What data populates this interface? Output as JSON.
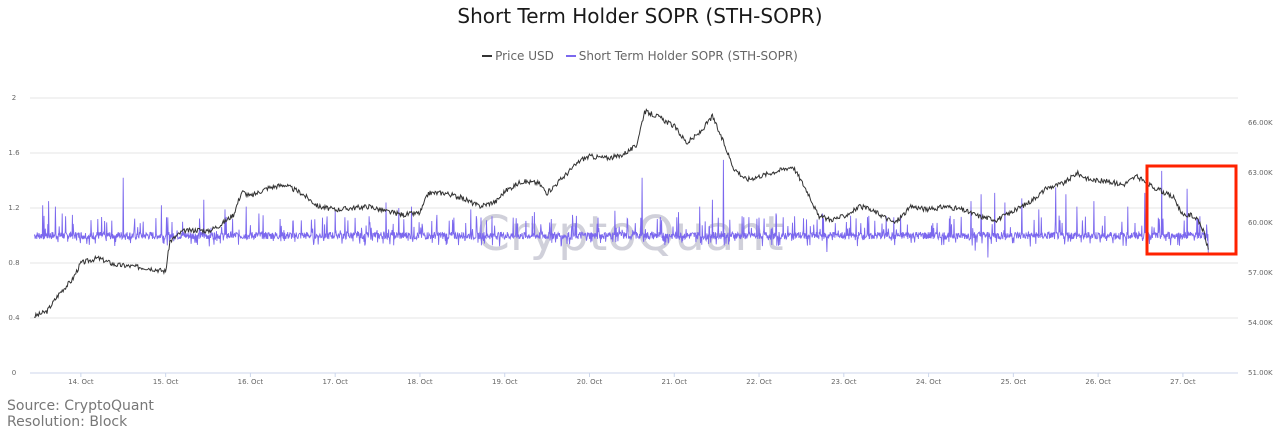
{
  "chart_data": {
    "type": "line",
    "title": "Short Term Holder SOPR (STH-SOPR)",
    "legend_position": "top-center",
    "grid": true,
    "x": {
      "range_days": [
        13.4,
        27.65
      ],
      "ticks": [
        {
          "label": "14. Oct",
          "day": 14
        },
        {
          "label": "15. Oct",
          "day": 15
        },
        {
          "label": "16. Oct",
          "day": 16
        },
        {
          "label": "17. Oct",
          "day": 17
        },
        {
          "label": "18. Oct",
          "day": 18
        },
        {
          "label": "19. Oct",
          "day": 19
        },
        {
          "label": "20. Oct",
          "day": 20
        },
        {
          "label": "21. Oct",
          "day": 21
        },
        {
          "label": "22. Oct",
          "day": 22
        },
        {
          "label": "23. Oct",
          "day": 23
        },
        {
          "label": "24. Oct",
          "day": 24
        },
        {
          "label": "25. Oct",
          "day": 25
        },
        {
          "label": "26. Oct",
          "day": 26
        },
        {
          "label": "27. Oct",
          "day": 27
        }
      ]
    },
    "y_left": {
      "range": [
        0,
        2
      ],
      "ticks": [
        {
          "label": "0",
          "value": 0
        },
        {
          "label": "0.4",
          "value": 0.4
        },
        {
          "label": "0.8",
          "value": 0.8
        },
        {
          "label": "1.2",
          "value": 1.2
        },
        {
          "label": "1.6",
          "value": 1.6
        },
        {
          "label": "2",
          "value": 2
        }
      ]
    },
    "y_right": {
      "range": [
        51000,
        67500
      ],
      "ticks": [
        {
          "label": "51.00K",
          "value": 51000
        },
        {
          "label": "54.00K",
          "value": 54000
        },
        {
          "label": "57.00K",
          "value": 57000
        },
        {
          "label": "60.00K",
          "value": 60000
        },
        {
          "label": "63.00K",
          "value": 63000
        },
        {
          "label": "66.00K",
          "value": 66000
        }
      ]
    },
    "series": [
      {
        "name": "Price USD",
        "axis": "right",
        "color": "#333333",
        "points": [
          [
            13.45,
            54.4
          ],
          [
            13.6,
            54.7
          ],
          [
            13.75,
            55.8
          ],
          [
            13.9,
            56.6
          ],
          [
            14.0,
            57.6
          ],
          [
            14.2,
            57.9
          ],
          [
            14.4,
            57.5
          ],
          [
            14.6,
            57.4
          ],
          [
            14.8,
            57.3
          ],
          [
            15.0,
            57.1
          ],
          [
            15.05,
            58.9
          ],
          [
            15.2,
            59.5
          ],
          [
            15.4,
            59.6
          ],
          [
            15.5,
            59.5
          ],
          [
            15.65,
            59.9
          ],
          [
            15.8,
            60.5
          ],
          [
            15.9,
            61.9
          ],
          [
            16.0,
            61.6
          ],
          [
            16.2,
            62.1
          ],
          [
            16.4,
            62.3
          ],
          [
            16.6,
            61.8
          ],
          [
            16.8,
            61.0
          ],
          [
            17.0,
            60.8
          ],
          [
            17.2,
            60.9
          ],
          [
            17.4,
            61.0
          ],
          [
            17.6,
            60.7
          ],
          [
            17.8,
            60.5
          ],
          [
            18.0,
            60.6
          ],
          [
            18.1,
            61.8
          ],
          [
            18.3,
            61.8
          ],
          [
            18.5,
            61.5
          ],
          [
            18.7,
            61.0
          ],
          [
            18.9,
            61.3
          ],
          [
            19.0,
            61.9
          ],
          [
            19.2,
            62.5
          ],
          [
            19.4,
            62.4
          ],
          [
            19.5,
            61.8
          ],
          [
            19.7,
            62.8
          ],
          [
            19.9,
            63.8
          ],
          [
            20.0,
            64.0
          ],
          [
            20.2,
            63.9
          ],
          [
            20.35,
            64.0
          ],
          [
            20.55,
            64.6
          ],
          [
            20.65,
            66.7
          ],
          [
            20.8,
            66.4
          ],
          [
            21.0,
            65.8
          ],
          [
            21.15,
            64.8
          ],
          [
            21.3,
            65.4
          ],
          [
            21.45,
            66.4
          ],
          [
            21.6,
            64.6
          ],
          [
            21.7,
            63.3
          ],
          [
            21.85,
            62.6
          ],
          [
            22.0,
            62.8
          ],
          [
            22.2,
            63.1
          ],
          [
            22.4,
            63.4
          ],
          [
            22.6,
            61.6
          ],
          [
            22.7,
            60.4
          ],
          [
            22.85,
            60.2
          ],
          [
            23.0,
            60.4
          ],
          [
            23.2,
            61.0
          ],
          [
            23.4,
            60.6
          ],
          [
            23.6,
            60.0
          ],
          [
            23.8,
            61.0
          ],
          [
            24.0,
            60.8
          ],
          [
            24.2,
            61.0
          ],
          [
            24.4,
            60.8
          ],
          [
            24.6,
            60.4
          ],
          [
            24.8,
            60.2
          ],
          [
            25.0,
            60.7
          ],
          [
            25.2,
            61.3
          ],
          [
            25.4,
            62.1
          ],
          [
            25.6,
            62.4
          ],
          [
            25.75,
            63.0
          ],
          [
            25.9,
            62.6
          ],
          [
            26.1,
            62.5
          ],
          [
            26.3,
            62.3
          ],
          [
            26.45,
            62.8
          ],
          [
            26.6,
            62.3
          ],
          [
            26.75,
            61.9
          ],
          [
            26.9,
            61.5
          ],
          [
            27.0,
            60.4
          ],
          [
            27.1,
            60.5
          ],
          [
            27.2,
            60.0
          ],
          [
            27.25,
            59.4
          ],
          [
            27.3,
            58.4
          ]
        ]
      },
      {
        "name": "Short Term Holder SOPR (STH-SOPR)",
        "axis": "left",
        "color": "#7b68ee",
        "baseline": 1.0,
        "spikes": [
          [
            13.55,
            1.22
          ],
          [
            13.62,
            1.25
          ],
          [
            13.7,
            1.21
          ],
          [
            13.78,
            1.16
          ],
          [
            13.9,
            1.15
          ],
          [
            14.2,
            1.12
          ],
          [
            14.5,
            1.42
          ],
          [
            14.7,
            1.09
          ],
          [
            14.95,
            1.22
          ],
          [
            15.2,
            1.1
          ],
          [
            15.45,
            1.26
          ],
          [
            15.7,
            1.19
          ],
          [
            15.95,
            1.21
          ],
          [
            16.1,
            1.16
          ],
          [
            16.35,
            1.12
          ],
          [
            16.6,
            1.11
          ],
          [
            16.85,
            1.13
          ],
          [
            17.0,
            1.18
          ],
          [
            17.15,
            1.11
          ],
          [
            17.4,
            1.14
          ],
          [
            17.6,
            1.24
          ],
          [
            17.75,
            1.2
          ],
          [
            17.9,
            1.21
          ],
          [
            18.2,
            1.15
          ],
          [
            18.4,
            1.13
          ],
          [
            18.6,
            1.19
          ],
          [
            18.85,
            1.14
          ],
          [
            19.1,
            1.13
          ],
          [
            19.35,
            1.17
          ],
          [
            19.55,
            1.12
          ],
          [
            19.8,
            1.15
          ],
          [
            20.1,
            1.13
          ],
          [
            20.3,
            1.18
          ],
          [
            20.45,
            1.12
          ],
          [
            20.62,
            1.42
          ],
          [
            20.8,
            1.12
          ],
          [
            21.05,
            1.17
          ],
          [
            21.3,
            1.21
          ],
          [
            21.45,
            1.26
          ],
          [
            21.58,
            1.55
          ],
          [
            21.8,
            1.14
          ],
          [
            22.0,
            1.13
          ],
          [
            22.2,
            1.16
          ],
          [
            22.42,
            1.14
          ],
          [
            22.6,
            1.27
          ],
          [
            22.75,
            1.16
          ],
          [
            22.9,
            1.09
          ],
          [
            23.2,
            1.09
          ],
          [
            23.5,
            1.14
          ],
          [
            23.75,
            1.08
          ],
          [
            24.05,
            1.09
          ],
          [
            24.3,
            1.12
          ],
          [
            24.5,
            1.25
          ],
          [
            24.62,
            1.3
          ],
          [
            24.7,
            1.4
          ],
          [
            24.78,
            1.31
          ],
          [
            24.9,
            1.24
          ],
          [
            25.1,
            1.27
          ],
          [
            25.3,
            1.19
          ],
          [
            25.5,
            1.35
          ],
          [
            25.62,
            1.3
          ],
          [
            25.75,
            1.21
          ],
          [
            25.95,
            1.25
          ],
          [
            26.1,
            1.22
          ],
          [
            26.35,
            1.21
          ],
          [
            26.55,
            1.31
          ],
          [
            26.75,
            1.47
          ],
          [
            27.05,
            1.34
          ],
          [
            27.2,
            1.14
          ],
          [
            27.28,
            1.08
          ]
        ],
        "dips": [
          [
            14.3,
            0.96
          ],
          [
            15.3,
            0.94
          ],
          [
            16.4,
            0.96
          ],
          [
            17.5,
            0.95
          ],
          [
            18.3,
            0.96
          ],
          [
            19.6,
            0.95
          ],
          [
            20.9,
            0.95
          ],
          [
            22.6,
            0.93
          ],
          [
            22.8,
            0.88
          ],
          [
            23.6,
            0.93
          ],
          [
            24.55,
            0.89
          ],
          [
            24.7,
            0.84
          ],
          [
            25.2,
            0.92
          ],
          [
            25.8,
            0.95
          ],
          [
            26.1,
            0.96
          ],
          [
            26.8,
            0.96
          ],
          [
            27.3,
            0.86
          ]
        ]
      }
    ],
    "watermark": "CryptoQuant",
    "highlight_box_color": "#ff2200"
  },
  "footer": {
    "source": "Source: CryptoQuant",
    "resolution": "Resolution: Block"
  }
}
